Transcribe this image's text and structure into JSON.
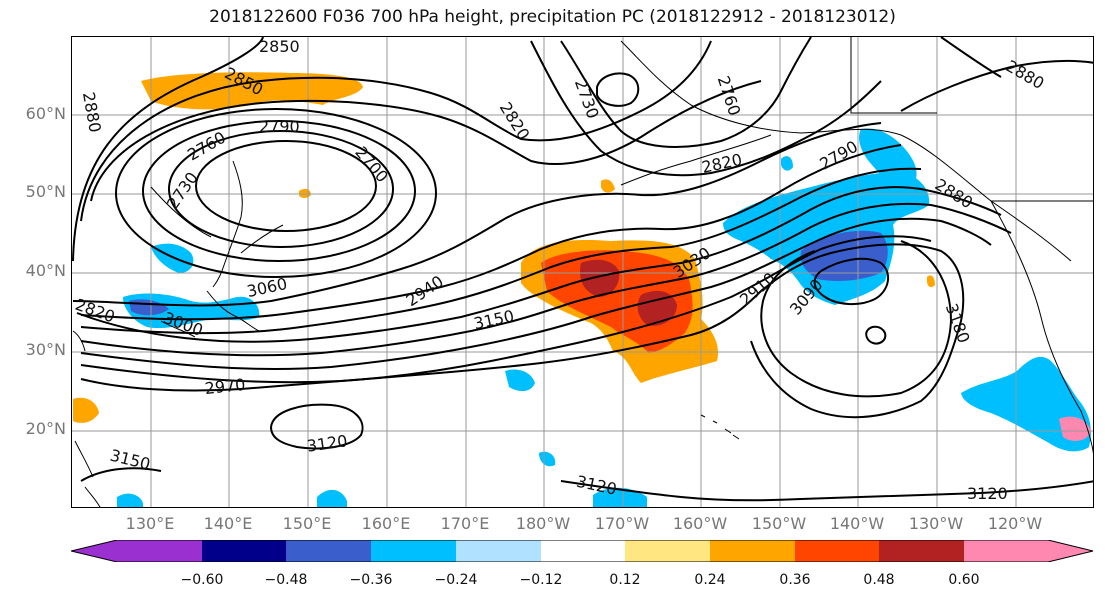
{
  "title": "2018122600 F036 700 hPa height, precipitation PC (2018122912 - 2018123012)",
  "lat_labels": [
    "60°N",
    "50°N",
    "40°N",
    "30°N",
    "20°N"
  ],
  "lon_labels": [
    "130°E",
    "140°E",
    "150°E",
    "160°E",
    "170°E",
    "180°W",
    "170°W",
    "160°W",
    "150°W",
    "140°W",
    "130°W",
    "120°W"
  ],
  "colorbar": {
    "ticks": [
      "−0.60",
      "−0.48",
      "−0.36",
      "−0.24",
      "−0.12",
      "0.12",
      "0.24",
      "0.36",
      "0.48",
      "0.60"
    ],
    "colors": [
      "#9b30d0",
      "#00008b",
      "#3a5fcd",
      "#00bfff",
      "#b0e2ff",
      "#ffffff",
      "#ffe680",
      "#ffa500",
      "#ff4500",
      "#b22222",
      "#ff88b0"
    ]
  },
  "contour_labels": [
    "2850",
    "2850",
    "2880",
    "2790",
    "2760",
    "2730",
    "2700",
    "2820",
    "2730",
    "2760",
    "2820",
    "2790",
    "2880",
    "2880",
    "3030",
    "2940",
    "2910",
    "3090",
    "3180",
    "3150",
    "3060",
    "2820",
    "3000",
    "2970",
    "3120",
    "3150",
    "3120",
    "3120",
    "3120"
  ],
  "precip_colors": {
    "orange": "#ffa500",
    "red_orange": "#ff4500",
    "dark_red": "#b22222",
    "light_yellow": "#ffe680",
    "cyan": "#00bfff",
    "blue": "#3a5fcd",
    "light_blue": "#b0e2ff"
  }
}
